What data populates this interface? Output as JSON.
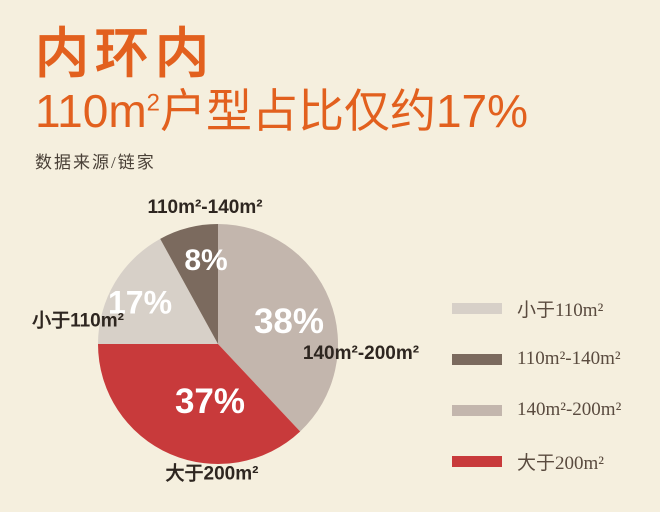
{
  "header": {
    "title": "内环内",
    "subtitle_prefix": "110m",
    "subtitle_sup": "2",
    "subtitle_suffix": "户型占比仅约17%",
    "source": "数据来源/链家"
  },
  "colors": {
    "background": "#f5efde",
    "accent_orange": "#e2601e",
    "label_dark": "#2e2620",
    "legend_text": "#5a4b3f"
  },
  "chart_data": {
    "type": "pie",
    "title": "内环内 110m²户型占比仅约17%",
    "source": "数据来源/链家",
    "start_angle_deg": -90,
    "direction": "clockwise",
    "legend_position": "right",
    "slices": [
      {
        "label": "140m²-200m²",
        "value": 38,
        "value_label": "38%",
        "color": "#c3b6ad"
      },
      {
        "label": "大于200m²",
        "value": 37,
        "value_label": "37%",
        "color": "#c83a3b"
      },
      {
        "label": "小于110m²",
        "value": 17,
        "value_label": "17%",
        "color": "#d7d0c8"
      },
      {
        "label": "110m²-140m²",
        "value": 8,
        "value_label": "8%",
        "color": "#7b6a5e"
      }
    ],
    "legend": [
      {
        "label": "小于110m²",
        "color": "#d7d0c8"
      },
      {
        "label": "110m²-140m²",
        "color": "#7b6a5e"
      },
      {
        "label": "140m²-200m²",
        "color": "#c3b6ad"
      },
      {
        "label": "大于200m²",
        "color": "#c83a3b"
      }
    ]
  }
}
